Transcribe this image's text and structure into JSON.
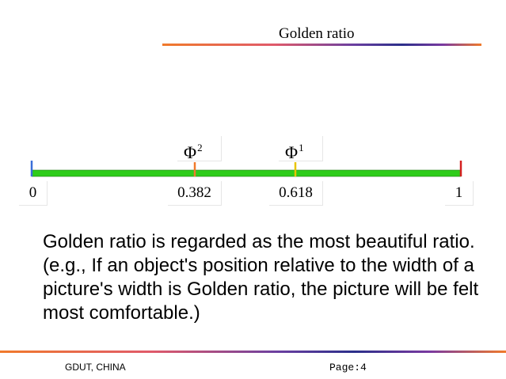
{
  "slide": {
    "title": "Golden ratio",
    "body": "Golden ratio is regarded as the most beautiful ratio. (e.g., If an object's position relative to the width of a picture's width is Golden ratio, the picture will be felt most comfortable.)"
  },
  "number_line": {
    "range": [
      0,
      1
    ],
    "ticks": [
      {
        "value": 0,
        "label": "0",
        "color": "#3a6fd8"
      },
      {
        "value": 0.382,
        "label": "0.382",
        "color": "#f07a2b"
      },
      {
        "value": 0.618,
        "label": "0.618",
        "color": "#e8c400"
      },
      {
        "value": 1,
        "label": "1",
        "color": "#d42020"
      }
    ],
    "phi_markers": [
      {
        "base": "Φ",
        "exponent": "2",
        "value": 0.382
      },
      {
        "base": "Φ",
        "exponent": "1",
        "value": 0.618
      }
    ],
    "line_color": "#2ecc1a"
  },
  "footer": {
    "left": "GDUT, CHINA",
    "right": "Page:4"
  },
  "colors": {
    "rule_start": "#f07a2b",
    "rule_mid": "#2b2f8a"
  }
}
